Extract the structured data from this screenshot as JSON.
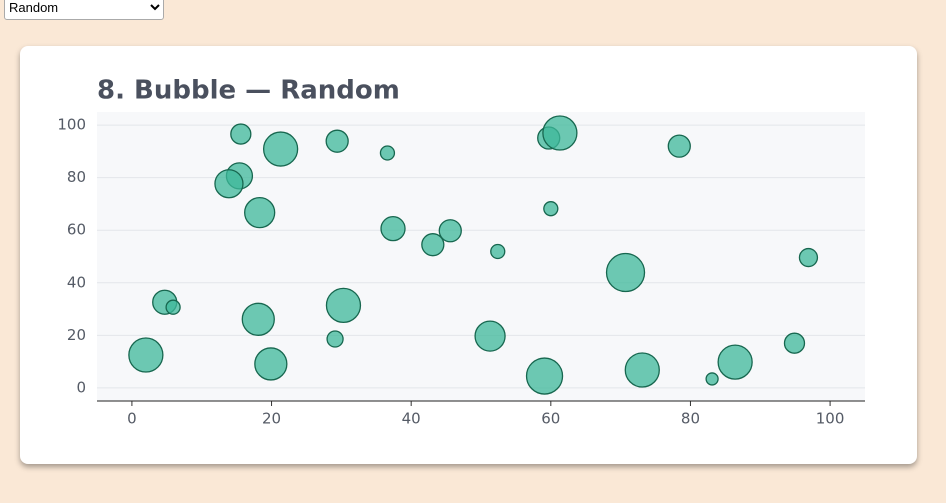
{
  "controls": {
    "dataset_select": "Random"
  },
  "chart_data": {
    "type": "bubble",
    "title": "8. Bubble — Random",
    "x": [
      15.6,
      21.3,
      29.4,
      36.6,
      59.7,
      61.3,
      78.4,
      15.4,
      13.9,
      18.3,
      60.0,
      37.4,
      45.6,
      43.1,
      52.4,
      70.7,
      96.9,
      4.7,
      5.9,
      30.3,
      18.1,
      29.1,
      51.3,
      94.9,
      2.0,
      19.9,
      59.1,
      73.1,
      86.4,
      83.1
    ],
    "values": [
      96.6,
      90.9,
      93.9,
      89.4,
      95.1,
      97.0,
      92.0,
      80.7,
      77.7,
      66.7,
      68.2,
      60.6,
      59.8,
      54.5,
      51.9,
      43.9,
      49.6,
      32.6,
      30.7,
      31.4,
      26.1,
      18.6,
      19.7,
      17.0,
      12.5,
      9.1,
      4.5,
      6.8,
      9.8,
      3.4
    ],
    "sizes": [
      10,
      17,
      11,
      7,
      11,
      17,
      11,
      13,
      14,
      15,
      7,
      12,
      11,
      11,
      7,
      19,
      9,
      12,
      7,
      17,
      16,
      8,
      15,
      10,
      17,
      16,
      18,
      17,
      17,
      6
    ],
    "color": "#3db89a",
    "xlim": [
      -5,
      105
    ],
    "xticks": [
      0,
      20,
      40,
      60,
      80,
      100
    ],
    "ylim": [
      -5,
      105
    ],
    "yticks": [
      0,
      20,
      40,
      60,
      80,
      100
    ],
    "grid": true
  }
}
